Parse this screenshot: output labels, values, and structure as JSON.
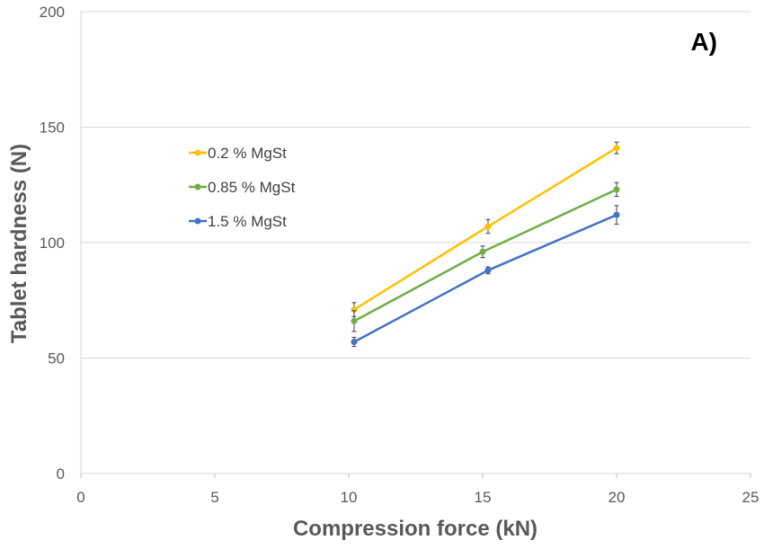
{
  "chart_data": {
    "type": "line",
    "panel_label": "A)",
    "xlabel": "Compression force (kN)",
    "ylabel": "Tablet hardness (N)",
    "xlim": [
      0,
      25
    ],
    "ylim": [
      0,
      200
    ],
    "x_ticks": [
      0,
      5,
      10,
      15,
      20,
      25
    ],
    "y_ticks": [
      0,
      50,
      100,
      150,
      200
    ],
    "grid": "horizontal",
    "legend_position": "upper-left",
    "series": [
      {
        "name": "0.2 % MgSt",
        "color": "#FFC000",
        "x": [
          10.2,
          15.2,
          20.0
        ],
        "y": [
          71,
          107,
          141
        ],
        "err": [
          3,
          3,
          2.5
        ]
      },
      {
        "name": "0.85 % MgSt",
        "color": "#70AD47",
        "x": [
          10.2,
          15.0,
          20.0
        ],
        "y": [
          66,
          96,
          123
        ],
        "err": [
          4.5,
          2.5,
          3
        ]
      },
      {
        "name": "1.5 % MgSt",
        "color": "#4472C4",
        "x": [
          10.2,
          15.2,
          20.0
        ],
        "y": [
          57,
          88,
          112
        ],
        "err": [
          2,
          1.5,
          4
        ]
      }
    ]
  }
}
